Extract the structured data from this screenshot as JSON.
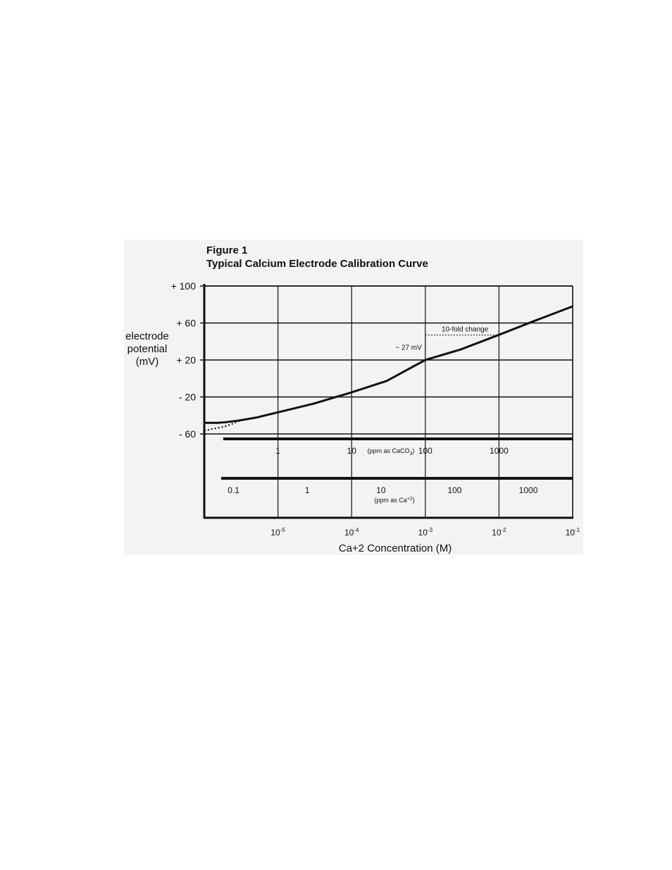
{
  "figure": {
    "label": "Figure 1",
    "title": "Typical Calcium Electrode Calibration Curve"
  },
  "chart_data": {
    "type": "line",
    "title": "Typical Calcium Electrode Calibration Curve",
    "xlabel": "Ca+2 Concentration (M)",
    "ylabel_lines": [
      "electrode",
      "potential",
      "(mV)"
    ],
    "x_scale": "log",
    "xlim": [
      1e-06,
      0.1
    ],
    "ylim": [
      -60,
      100
    ],
    "grid": true,
    "x_ticks": [
      {
        "value": 1e-05,
        "base": "10",
        "exp": "-5"
      },
      {
        "value": 0.0001,
        "base": "10",
        "exp": "-4"
      },
      {
        "value": 0.001,
        "base": "10",
        "exp": "-3"
      },
      {
        "value": 0.01,
        "base": "10",
        "exp": "-2"
      },
      {
        "value": 0.1,
        "base": "10",
        "exp": "-1"
      }
    ],
    "y_ticks": [
      {
        "value": 100,
        "label": "+ 100"
      },
      {
        "value": 60,
        "label": "+ 60"
      },
      {
        "value": 20,
        "label": "+ 20"
      },
      {
        "value": -20,
        "label": "- 20"
      },
      {
        "value": -60,
        "label": "- 60"
      }
    ],
    "series": [
      {
        "style": "solid",
        "x": [
          1e-06,
          1.5e-06,
          2e-06,
          3e-06,
          5e-06,
          1e-05,
          3e-05,
          0.0001,
          0.0003,
          0.001,
          0.003,
          0.01,
          0.03,
          0.1
        ],
        "y": [
          -48,
          -48,
          -47.2,
          -45.4,
          -42.4,
          -36.6,
          -27.4,
          -15,
          -2.6,
          20,
          31.3,
          47.2,
          62.1,
          78
        ]
      },
      {
        "style": "dotted",
        "x": [
          1e-06,
          2e-06,
          3e-06
        ],
        "y": [
          -56.5,
          -51.5,
          -46
        ]
      }
    ],
    "ppm_scales": [
      {
        "caption_prefix": "(ppm as CaCO",
        "caption_sub": "3",
        "caption_suffix": ")",
        "ticks": [
          {
            "value": 1e-05,
            "label": "1"
          },
          {
            "value": 0.0001,
            "label": "10"
          },
          {
            "value": 0.001,
            "label": "100"
          },
          {
            "value": 0.01,
            "label": "1000"
          }
        ]
      },
      {
        "caption_prefix": "(ppm as Ca",
        "caption_sup": "+2",
        "caption_suffix": ")",
        "ticks": [
          {
            "value": 2.5e-06,
            "label": "0.1"
          },
          {
            "value": 2.5e-05,
            "label": "1"
          },
          {
            "value": 0.00025,
            "label": "10"
          },
          {
            "value": 0.0025,
            "label": "100"
          },
          {
            "value": 0.025,
            "label": "1000"
          }
        ]
      }
    ],
    "annotations": {
      "slope_label": "~ 27 mV",
      "change_label": "10-fold change",
      "bracket_from_x": 0.001,
      "bracket_to_x": 0.01,
      "bracket_low_y": 20,
      "bracket_high_y": 47
    }
  }
}
